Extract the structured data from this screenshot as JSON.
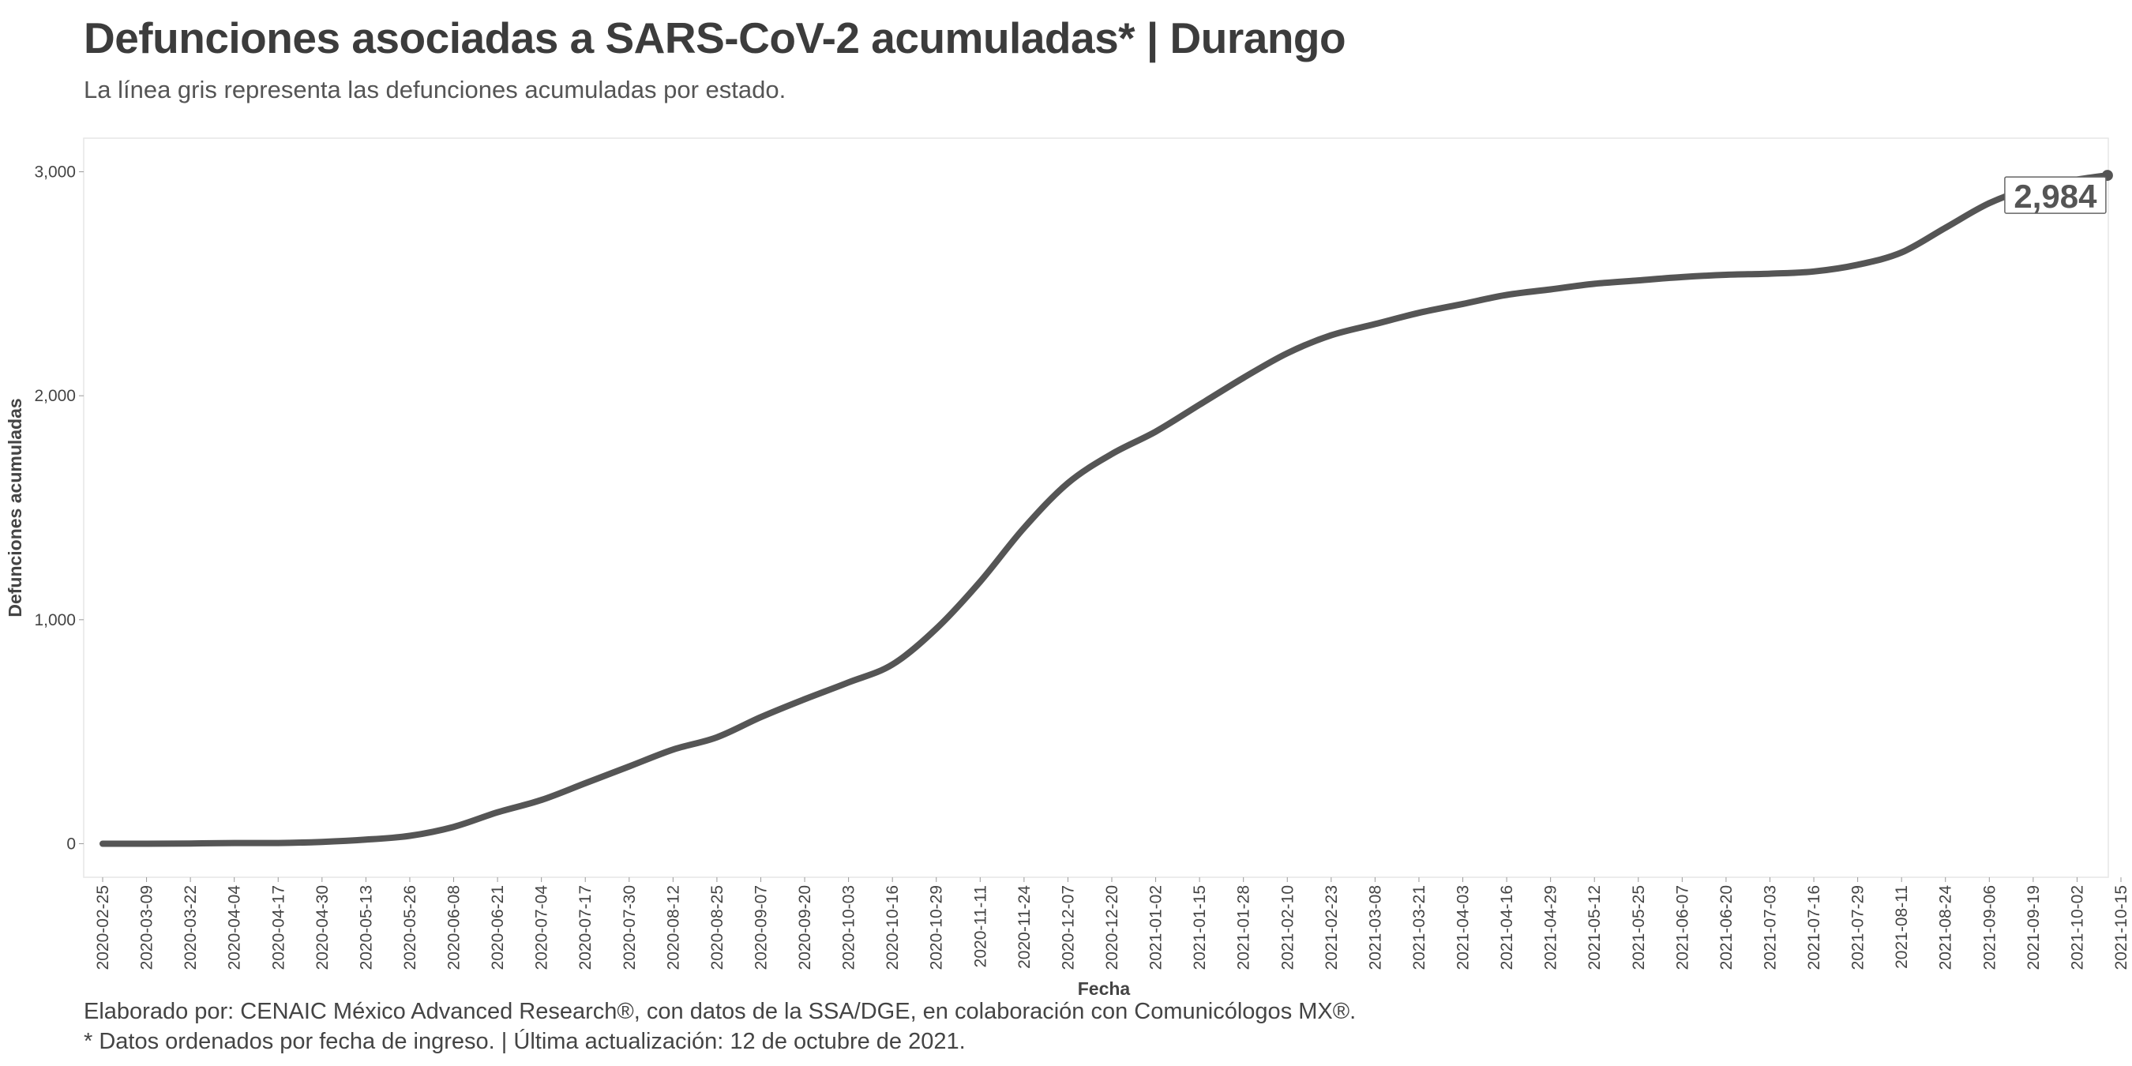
{
  "chart_data": {
    "type": "line",
    "title": "Defunciones asociadas a SARS-CoV-2 acumuladas* | Durango",
    "subtitle": "La línea gris representa las defunciones acumuladas por estado.",
    "xlabel": "Fecha",
    "ylabel": "Defunciones acumuladas",
    "x_start": "2020-02-25",
    "x_end": "2021-10-15",
    "ylim": [
      -150,
      3150
    ],
    "yticks": [
      0,
      1000,
      2000,
      3000
    ],
    "ytick_labels": [
      "0",
      "1,000",
      "2,000",
      "3,000"
    ],
    "xtick_labels": [
      "2020-02-25",
      "2020-03-09",
      "2020-03-22",
      "2020-04-04",
      "2020-04-17",
      "2020-04-30",
      "2020-05-13",
      "2020-05-26",
      "2020-06-08",
      "2020-06-21",
      "2020-07-04",
      "2020-07-17",
      "2020-07-30",
      "2020-08-12",
      "2020-08-25",
      "2020-09-07",
      "2020-09-20",
      "2020-10-03",
      "2020-10-16",
      "2020-10-29",
      "2020-11-11",
      "2020-11-24",
      "2020-12-07",
      "2020-12-20",
      "2021-01-02",
      "2021-01-15",
      "2021-01-28",
      "2021-02-10",
      "2021-02-23",
      "2021-03-08",
      "2021-03-21",
      "2021-04-03",
      "2021-04-16",
      "2021-04-29",
      "2021-05-12",
      "2021-05-25",
      "2021-06-07",
      "2021-06-20",
      "2021-07-03",
      "2021-07-16",
      "2021-07-29",
      "2021-08-11",
      "2021-08-24",
      "2021-09-06",
      "2021-09-19",
      "2021-10-02",
      "2021-10-15"
    ],
    "grid": false,
    "line_color": "#555555",
    "end_label": "2,984",
    "series": [
      {
        "points": [
          [
            "2020-02-25",
            0
          ],
          [
            "2020-03-09",
            0
          ],
          [
            "2020-03-22",
            1
          ],
          [
            "2020-04-04",
            3
          ],
          [
            "2020-04-17",
            3
          ],
          [
            "2020-04-30",
            8
          ],
          [
            "2020-05-13",
            18
          ],
          [
            "2020-05-26",
            35
          ],
          [
            "2020-06-08",
            75
          ],
          [
            "2020-06-21",
            140
          ],
          [
            "2020-07-04",
            195
          ],
          [
            "2020-07-17",
            270
          ],
          [
            "2020-07-30",
            345
          ],
          [
            "2020-08-12",
            420
          ],
          [
            "2020-08-25",
            475
          ],
          [
            "2020-09-07",
            565
          ],
          [
            "2020-09-20",
            645
          ],
          [
            "2020-10-03",
            720
          ],
          [
            "2020-10-16",
            800
          ],
          [
            "2020-10-29",
            960
          ],
          [
            "2020-11-11",
            1170
          ],
          [
            "2020-11-24",
            1410
          ],
          [
            "2020-12-07",
            1610
          ],
          [
            "2020-12-20",
            1740
          ],
          [
            "2021-01-02",
            1840
          ],
          [
            "2021-01-15",
            1960
          ],
          [
            "2021-01-28",
            2080
          ],
          [
            "2021-02-10",
            2190
          ],
          [
            "2021-02-23",
            2270
          ],
          [
            "2021-03-08",
            2320
          ],
          [
            "2021-03-21",
            2370
          ],
          [
            "2021-04-03",
            2410
          ],
          [
            "2021-04-16",
            2450
          ],
          [
            "2021-04-29",
            2475
          ],
          [
            "2021-05-12",
            2500
          ],
          [
            "2021-05-25",
            2515
          ],
          [
            "2021-06-07",
            2530
          ],
          [
            "2021-06-20",
            2540
          ],
          [
            "2021-07-03",
            2545
          ],
          [
            "2021-07-16",
            2555
          ],
          [
            "2021-07-29",
            2585
          ],
          [
            "2021-08-11",
            2640
          ],
          [
            "2021-08-24",
            2750
          ],
          [
            "2021-09-06",
            2860
          ],
          [
            "2021-09-19",
            2930
          ],
          [
            "2021-10-02",
            2965
          ],
          [
            "2021-10-11",
            2984
          ]
        ]
      }
    ]
  },
  "captions": {
    "line1": "Elaborado por: CENAIC México Advanced Research®, con datos de la SSA/DGE, en colaboración con Comunicólogos MX®.",
    "line2": "* Datos ordenados por fecha de ingreso. | Última actualización: 12 de octubre de 2021."
  }
}
